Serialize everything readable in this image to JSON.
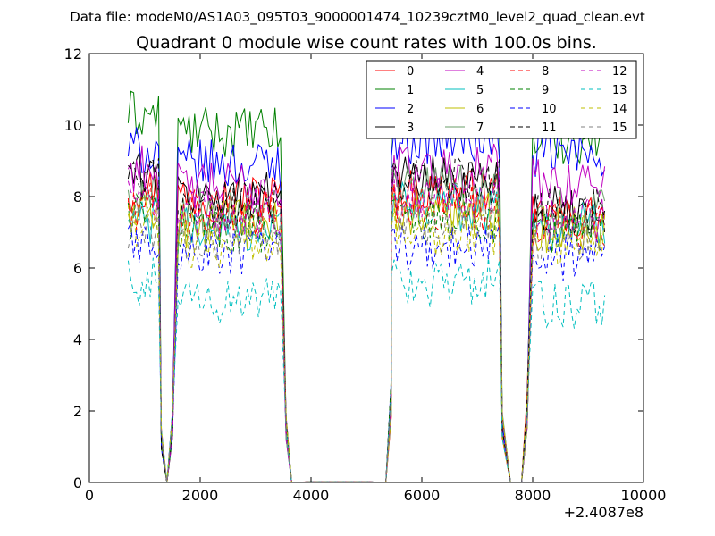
{
  "header": {
    "data_file": "Data file: modeM0/AS1A03_095T03_9000001474_10239cztM0_level2_quad_clean.evt"
  },
  "chart_data": {
    "type": "line",
    "title": "Quadrant 0 module wise count rates with 100.0s bins.",
    "xlabel": "",
    "ylabel": "",
    "x_offset_label": "+2.4087e8",
    "xlim": [
      0,
      10000
    ],
    "ylim": [
      0,
      12
    ],
    "x_ticks": [
      0,
      2000,
      4000,
      6000,
      8000,
      10000
    ],
    "y_ticks": [
      0,
      2,
      4,
      6,
      8,
      10,
      12
    ],
    "x_tick_labels": [
      "0",
      "2000",
      "4000",
      "6000",
      "8000",
      "10000"
    ],
    "y_tick_labels": [
      "0",
      "2",
      "4",
      "6",
      "8",
      "10",
      "12"
    ],
    "legend_position": "top-right",
    "segments": [
      {
        "start": 700,
        "end": 1250
      },
      {
        "start": 1600,
        "end": 3450
      },
      {
        "start": 5450,
        "end": 7400
      },
      {
        "start": 8000,
        "end": 9300
      }
    ],
    "gaps": [
      {
        "x": [
          1300,
          1400,
          1500
        ],
        "y": [
          1.5,
          0.0,
          2.0
        ]
      },
      {
        "x": [
          3550,
          3650
        ],
        "y": [
          2.0,
          0.0
        ]
      },
      {
        "x": [
          5350,
          5450
        ],
        "y": [
          0.0,
          3.0
        ]
      },
      {
        "x": [
          7450,
          7600,
          7800,
          7900
        ],
        "y": [
          2.0,
          0.0,
          0.0,
          2.5
        ]
      }
    ],
    "series": [
      {
        "name": "0",
        "color": "#ff0000",
        "dash": "solid",
        "levels": [
          8.2,
          8.0,
          8.1,
          7.4
        ]
      },
      {
        "name": "1",
        "color": "#008000",
        "dash": "solid",
        "levels": [
          10.3,
          9.8,
          10.6,
          9.6
        ]
      },
      {
        "name": "2",
        "color": "#0000ff",
        "dash": "solid",
        "levels": [
          9.3,
          8.9,
          9.6,
          9.2
        ]
      },
      {
        "name": "3",
        "color": "#000000",
        "dash": "solid",
        "levels": [
          8.6,
          8.0,
          8.5,
          7.6
        ]
      },
      {
        "name": "4",
        "color": "#bf00bf",
        "dash": "solid",
        "levels": [
          8.8,
          8.3,
          8.8,
          8.4
        ]
      },
      {
        "name": "5",
        "color": "#00bfbf",
        "dash": "solid",
        "levels": [
          7.3,
          7.1,
          7.7,
          7.2
        ]
      },
      {
        "name": "6",
        "color": "#bfbf00",
        "dash": "solid",
        "levels": [
          7.4,
          7.2,
          7.5,
          7.1
        ]
      },
      {
        "name": "7",
        "color": "#6a9e6a",
        "dash": "solid",
        "levels": [
          8.0,
          7.6,
          8.2,
          7.5
        ]
      },
      {
        "name": "8",
        "color": "#ff0000",
        "dash": "dashed",
        "levels": [
          7.7,
          7.5,
          7.7,
          7.2
        ]
      },
      {
        "name": "9",
        "color": "#008000",
        "dash": "dashed",
        "levels": [
          7.5,
          7.1,
          7.4,
          7.0
        ]
      },
      {
        "name": "10",
        "color": "#0000ff",
        "dash": "dashed",
        "levels": [
          6.7,
          6.4,
          6.6,
          6.3
        ]
      },
      {
        "name": "11",
        "color": "#000000",
        "dash": "dashed",
        "levels": [
          8.4,
          7.8,
          8.4,
          7.6
        ]
      },
      {
        "name": "12",
        "color": "#bf00bf",
        "dash": "dashed",
        "levels": [
          7.9,
          7.5,
          7.9,
          7.4
        ]
      },
      {
        "name": "13",
        "color": "#00bfbf",
        "dash": "dashed",
        "levels": [
          5.6,
          5.1,
          5.6,
          5.0
        ]
      },
      {
        "name": "14",
        "color": "#bfbf00",
        "dash": "dashed",
        "levels": [
          7.1,
          6.7,
          7.0,
          6.8
        ]
      },
      {
        "name": "15",
        "color": "#808080",
        "dash": "dashed",
        "levels": [
          7.2,
          6.9,
          7.3,
          6.9
        ]
      }
    ]
  }
}
